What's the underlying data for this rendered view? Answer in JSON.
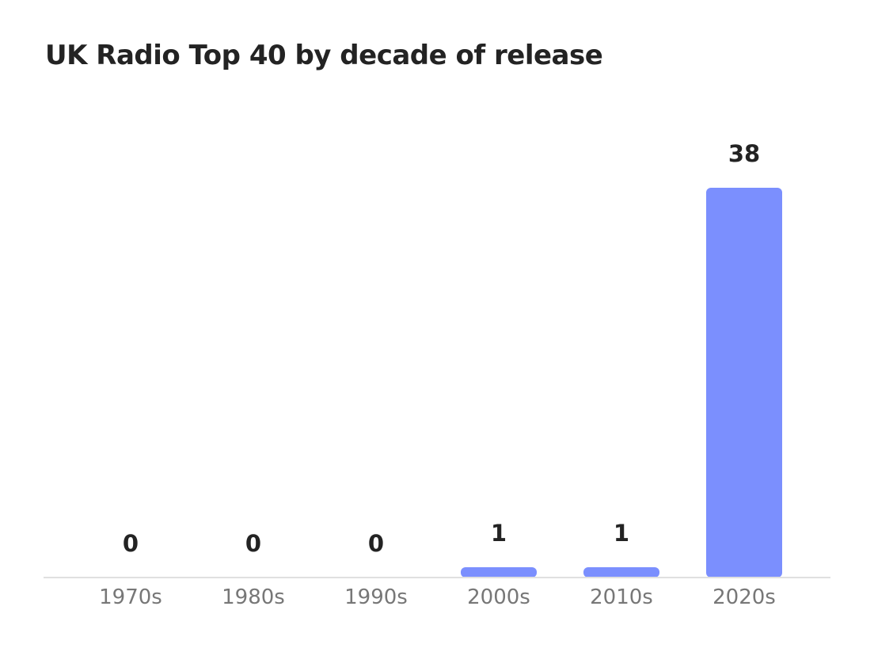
{
  "chart_data": {
    "type": "bar",
    "title": "UK Radio Top 40 by decade of release",
    "xlabel": "",
    "ylabel": "",
    "categories": [
      "1970s",
      "1980s",
      "1990s",
      "2000s",
      "2010s",
      "2020s"
    ],
    "values": [
      0,
      0,
      0,
      1,
      1,
      38
    ],
    "data_labels": [
      "0",
      "0",
      "0",
      "1",
      "1",
      "38"
    ],
    "ylim": [
      0,
      38
    ],
    "grid": false,
    "legend": "none",
    "colors": {
      "bar": "#7b8ffe",
      "axis": "#e0e0e0",
      "title": "#232323",
      "data_label": "#232323",
      "tick_label": "#777777"
    }
  }
}
